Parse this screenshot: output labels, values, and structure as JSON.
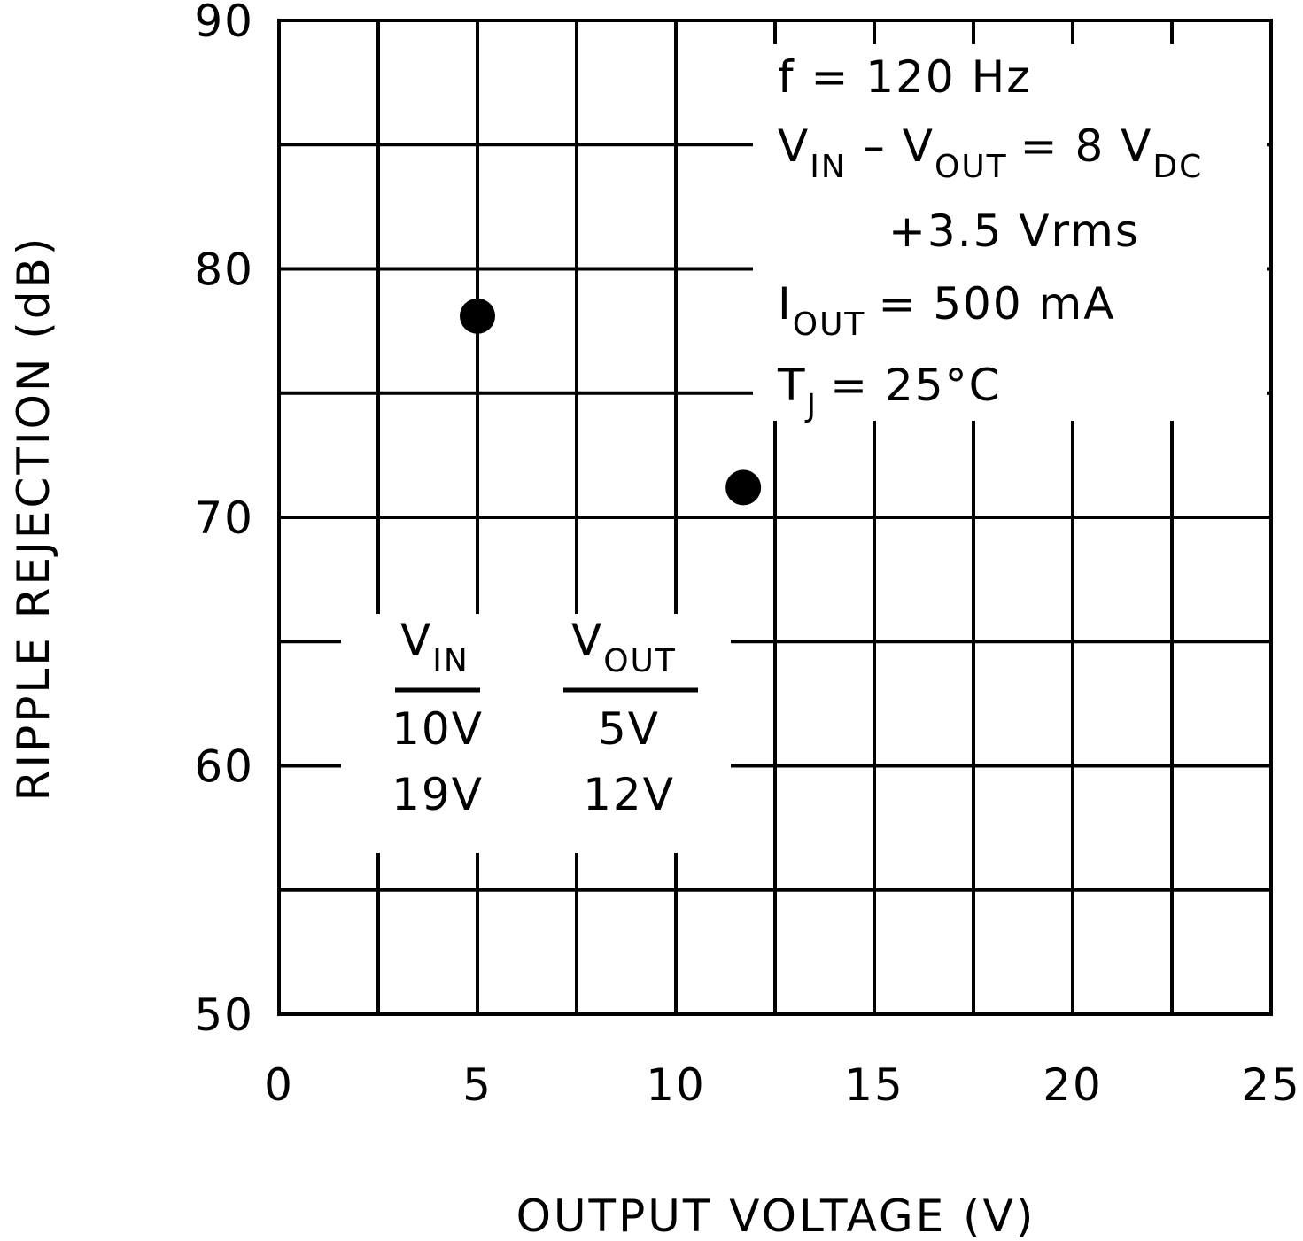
{
  "chart_data": {
    "type": "scatter",
    "title": "",
    "xlabel": "OUTPUT VOLTAGE (V)",
    "ylabel": "RIPPLE REJECTION (dB)",
    "xlim": [
      0,
      25
    ],
    "ylim": [
      50,
      90
    ],
    "x_ticks": [
      "0",
      "5",
      "10",
      "15",
      "20",
      "25"
    ],
    "y_ticks": [
      "50",
      "60",
      "70",
      "80",
      "90"
    ],
    "grid": true,
    "points": [
      {
        "x": 5,
        "y": 78.1
      },
      {
        "x": 11.7,
        "y": 71.2
      }
    ],
    "conditions": {
      "f": "f = 120 Hz",
      "vin_main": "V",
      "vin_sub": "IN",
      "minus": "–",
      "vout_main": "V",
      "vout_sub": "OUT",
      "eq8": "= 8 V",
      "dc_sub": "DC",
      "rms": "+3.5 Vrms",
      "iout_main": "I",
      "iout_sub": "OUT",
      "iout_val": "= 500 mA",
      "tj_main": "T",
      "tj_sub": "J",
      "tj_val": "= 25°C"
    },
    "table": {
      "col1_main": "V",
      "col1_sub": "IN",
      "col2_main": "V",
      "col2_sub": "OUT",
      "rows": [
        {
          "vin": "10V",
          "vout": "5V"
        },
        {
          "vin": "19V",
          "vout": "12V"
        }
      ]
    }
  }
}
